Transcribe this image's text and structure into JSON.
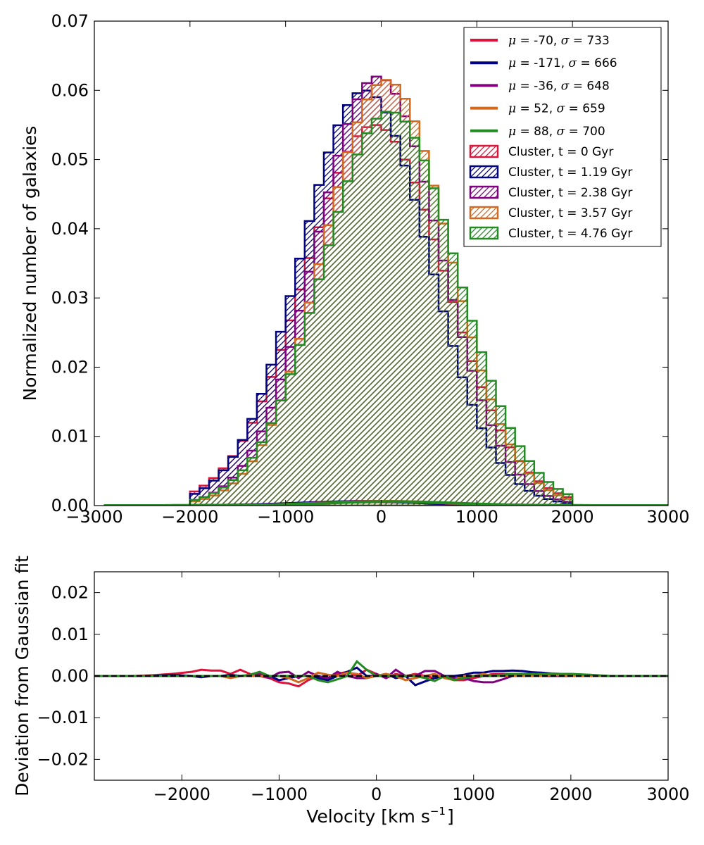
{
  "chart_data": [
    {
      "type": "histogram+line",
      "title": "",
      "xlabel": "",
      "ylabel": "Normalized number of galaxies",
      "xlim": [
        -3000,
        3000
      ],
      "ylim": [
        0,
        0.07
      ],
      "x_ticks": [
        -3000,
        -2000,
        -1000,
        0,
        1000,
        2000,
        3000
      ],
      "x_tick_labels": [
        "−3000",
        "−2000",
        "−1000",
        "0",
        "1000",
        "2000",
        "3000"
      ],
      "y_ticks": [
        0,
        0.01,
        0.02,
        0.03,
        0.04,
        0.05,
        0.06,
        0.07
      ],
      "y_tick_labels": [
        "0.00",
        "0.01",
        "0.02",
        "0.03",
        "0.04",
        "0.05",
        "0.06",
        "0.07"
      ],
      "bin_width": 100,
      "bin_range": [
        -2000,
        2000
      ],
      "legend_position": "top-right",
      "fits": [
        {
          "name": "fit t0",
          "mu_label": "-70",
          "sigma_label": "733",
          "mu": -70,
          "sigma": 733,
          "color": "#dc143c"
        },
        {
          "name": "fit t1",
          "mu_label": "-171",
          "sigma_label": "666",
          "mu": -171,
          "sigma": 666,
          "color": "#000080"
        },
        {
          "name": "fit t2",
          "mu_label": "-36",
          "sigma_label": "648",
          "mu": -36,
          "sigma": 648,
          "color": "#800080"
        },
        {
          "name": "fit t3",
          "mu_label": "52",
          "sigma_label": "659",
          "mu": 52,
          "sigma": 659,
          "color": "#d2691e"
        },
        {
          "name": "fit t4",
          "mu_label": "88",
          "sigma_label": "700",
          "mu": 88,
          "sigma": 700,
          "color": "#228b22"
        }
      ],
      "histograms": [
        {
          "label": "Cluster, t = 0 Gyr",
          "color": "#dc143c",
          "mu": -70,
          "sigma": 733,
          "peak_observed": 0.055
        },
        {
          "label": "Cluster, t = 1.19 Gyr",
          "color": "#000080",
          "mu": -171,
          "sigma": 666,
          "peak_observed": 0.06
        },
        {
          "label": "Cluster, t = 2.38 Gyr",
          "color": "#800080",
          "mu": -36,
          "sigma": 648,
          "peak_observed": 0.062
        },
        {
          "label": "Cluster, t = 3.57 Gyr",
          "color": "#d2691e",
          "mu": 52,
          "sigma": 659,
          "peak_observed": 0.0615
        },
        {
          "label": "Cluster, t = 4.76 Gyr",
          "color": "#228b22",
          "mu": 88,
          "sigma": 700,
          "peak_observed": 0.057
        }
      ]
    },
    {
      "type": "line",
      "title": "",
      "xlabel": "Velocity [km s",
      "xlabel_superscript": "−1",
      "xlabel_suffix": "]",
      "ylabel": "Deviation from Gaussian fit",
      "xlim": [
        -2900,
        3000
      ],
      "ylim": [
        -0.025,
        0.025
      ],
      "x_ticks": [
        -2000,
        -1000,
        0,
        1000,
        2000,
        3000
      ],
      "x_tick_labels": [
        "−2000",
        "−1000",
        "0",
        "1000",
        "2000",
        "3000"
      ],
      "y_ticks": [
        -0.02,
        -0.01,
        0,
        0.01,
        0.02
      ],
      "y_tick_labels": [
        "−0.02",
        "−0.01",
        "0.00",
        "0.01",
        "0.02"
      ],
      "x": [
        -2900,
        -2700,
        -2500,
        -2300,
        -2100,
        -1900,
        -1800,
        -1700,
        -1600,
        -1500,
        -1400,
        -1300,
        -1200,
        -1100,
        -1000,
        -900,
        -800,
        -700,
        -600,
        -500,
        -400,
        -300,
        -200,
        -100,
        0,
        100,
        200,
        300,
        400,
        500,
        600,
        700,
        800,
        900,
        1000,
        1100,
        1200,
        1300,
        1400,
        1500,
        1600,
        1700,
        1800,
        1900,
        2000,
        2200,
        2400,
        2600,
        2800,
        3000
      ],
      "series": [
        {
          "name": "t = 0 Gyr",
          "color": "#dc143c",
          "values": [
            0,
            0,
            0,
            0.0002,
            0.0005,
            0.001,
            0.0015,
            0.0013,
            0.0013,
            0.0005,
            0.0015,
            0.0005,
            0,
            -0.0005,
            -0.0015,
            -0.0018,
            -0.0025,
            -0.001,
            0,
            -0.001,
            0.0005,
            0.001,
            0,
            0.0015,
            0.0005,
            -0.0005,
            0.0005,
            0,
            0.0005,
            0,
            -0.0005,
            0,
            -0.001,
            -0.001,
            -0.0005,
            0,
            0.0005,
            0.0005,
            0.0005,
            0.0005,
            0.0005,
            0.0005,
            0,
            0.0005,
            0.0005,
            0,
            0,
            0,
            0,
            0
          ]
        },
        {
          "name": "t = 1.19 Gyr",
          "color": "#000080",
          "values": [
            0,
            0,
            0,
            0,
            0.0003,
            0,
            -0.0003,
            0,
            0,
            0.0003,
            0,
            0,
            0,
            0,
            -0.001,
            -0.0005,
            0,
            0,
            -0.0005,
            -0.001,
            0,
            0.001,
            0.002,
            0,
            0,
            0.0005,
            -0.0005,
            0,
            -0.0022,
            -0.0013,
            -0.0005,
            0,
            0,
            0.0003,
            0.0008,
            0.0008,
            0.0012,
            0.0012,
            0.0013,
            0.0012,
            0.0009,
            0.0008,
            0.0006,
            0.0005,
            0.0004,
            0.0002,
            0,
            0,
            0,
            0
          ]
        },
        {
          "name": "t = 2.38 Gyr",
          "color": "#800080",
          "values": [
            0,
            0,
            0,
            0,
            0,
            0,
            0,
            0,
            0,
            0,
            0,
            0,
            0.0005,
            -0.0005,
            0.0008,
            0.001,
            -0.0005,
            0.001,
            0,
            -0.0005,
            0.001,
            0,
            -0.0005,
            -0.0005,
            0.0005,
            -0.0005,
            0.0015,
            0,
            0,
            0.0012,
            0.0012,
            0,
            -0.0005,
            -0.0005,
            -0.0012,
            -0.0015,
            -0.0015,
            -0.0008,
            0,
            0,
            0,
            0,
            0,
            0,
            0,
            0,
            0,
            0,
            0,
            0
          ]
        },
        {
          "name": "t = 3.57 Gyr",
          "color": "#d2691e",
          "values": [
            0,
            0,
            0,
            0,
            0,
            0,
            0,
            0,
            0,
            -0.0005,
            0,
            0,
            0,
            0,
            0,
            -0.0005,
            -0.0015,
            -0.0005,
            0.0008,
            0.0003,
            0,
            0.0008,
            0.0005,
            -0.0005,
            0,
            0.0005,
            0,
            -0.001,
            -0.0005,
            0,
            0.0005,
            -0.0005,
            -0.001,
            0,
            0,
            0.0005,
            0,
            0,
            0,
            0,
            0,
            0,
            0.0002,
            0.0002,
            0,
            0,
            0,
            0,
            0,
            0
          ]
        },
        {
          "name": "t = 4.76 Gyr",
          "color": "#228b22",
          "values": [
            0,
            0,
            0,
            0,
            0,
            0,
            0,
            0,
            0,
            0,
            0,
            0.0003,
            0.001,
            0,
            0,
            0,
            0,
            0,
            -0.001,
            -0.0015,
            -0.0008,
            0,
            0.0035,
            0.0015,
            0,
            0,
            0,
            0,
            0,
            -0.0005,
            -0.0012,
            0,
            -0.001,
            -0.0005,
            0,
            0,
            0,
            0.0003,
            0.0005,
            0.0005,
            0.0005,
            0.0005,
            0.0005,
            0.0005,
            0.0005,
            0.0003,
            0,
            0,
            0,
            0
          ]
        }
      ],
      "reference_line": {
        "y": 0,
        "style": "dashed",
        "color": "#000000"
      }
    }
  ]
}
